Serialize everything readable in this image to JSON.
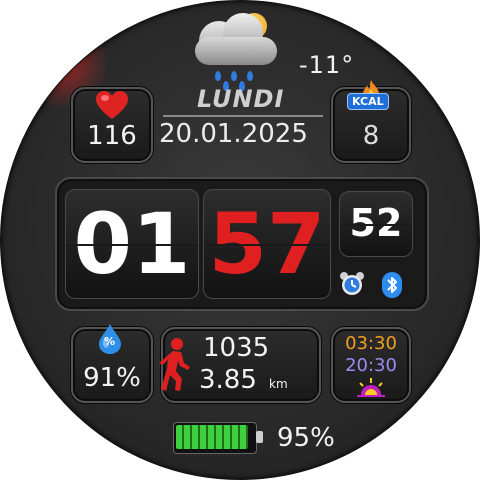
{
  "weather": {
    "icon": "partly-cloudy-rain-icon",
    "temperature": "-11°"
  },
  "date": {
    "day_name": "LUNDI",
    "date_text": "20.01.2025"
  },
  "heart_rate": {
    "icon": "heart-icon",
    "value": "116"
  },
  "calories": {
    "icon": "flame-icon",
    "badge": "KCAL",
    "value": "8"
  },
  "time": {
    "hours": "01",
    "minutes": "57",
    "seconds": "52"
  },
  "status_icons": {
    "alarm": "alarm-clock-icon",
    "bluetooth": "bluetooth-icon"
  },
  "humidity": {
    "icon": "water-drop-icon",
    "badge": "%",
    "value": "91%"
  },
  "activity": {
    "icon": "walking-person-icon",
    "steps": "1035",
    "distance": "3.85",
    "distance_unit": "km"
  },
  "sun": {
    "sunrise": "03:30",
    "sunset": "20:30",
    "icon": "sunrise-icon"
  },
  "battery": {
    "icon": "battery-icon",
    "level": 0.95,
    "value": "95%"
  },
  "colors": {
    "minutes": "#e02020",
    "sunrise": "#f0a020",
    "sunset": "#9a8cf0",
    "battery": "#2fbf2f",
    "bluetooth": "#2d8cf0"
  }
}
